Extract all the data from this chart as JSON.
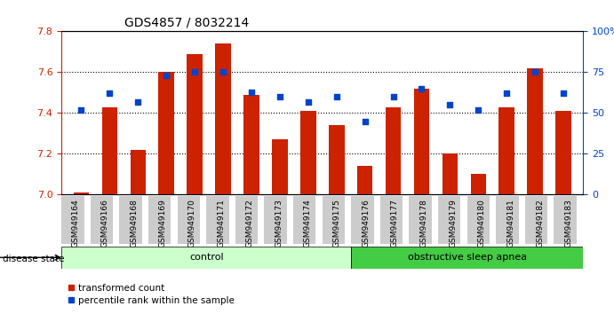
{
  "title": "GDS4857 / 8032214",
  "samples": [
    "GSM949164",
    "GSM949166",
    "GSM949168",
    "GSM949169",
    "GSM949170",
    "GSM949171",
    "GSM949172",
    "GSM949173",
    "GSM949174",
    "GSM949175",
    "GSM949176",
    "GSM949177",
    "GSM949178",
    "GSM949179",
    "GSM949180",
    "GSM949181",
    "GSM949182",
    "GSM949183"
  ],
  "red_values": [
    7.01,
    7.43,
    7.22,
    7.6,
    7.69,
    7.74,
    7.49,
    7.27,
    7.41,
    7.34,
    7.14,
    7.43,
    7.52,
    7.2,
    7.1,
    7.43,
    7.62,
    7.41
  ],
  "blue_values": [
    52,
    62,
    57,
    73,
    75,
    75,
    63,
    60,
    57,
    60,
    45,
    60,
    65,
    55,
    52,
    62,
    75,
    62
  ],
  "ylim_left": [
    7.0,
    7.8
  ],
  "ylim_right": [
    0,
    100
  ],
  "yticks_left": [
    7.0,
    7.2,
    7.4,
    7.6,
    7.8
  ],
  "yticks_right": [
    0,
    25,
    50,
    75,
    100
  ],
  "ytick_labels_right": [
    "0",
    "25",
    "50",
    "75",
    "100%"
  ],
  "control_count": 10,
  "osa_count": 8,
  "control_label": "control",
  "osa_label": "obstructive sleep apnea",
  "disease_state_label": "disease state",
  "legend_red": "transformed count",
  "legend_blue": "percentile rank within the sample",
  "bar_color": "#cc2200",
  "blue_color": "#0044cc",
  "control_bg": "#ccffcc",
  "osa_bg": "#44cc44",
  "tick_label_bg": "#cccccc",
  "grid_color": "#000000",
  "title_fontsize": 10,
  "axis_fontsize": 8,
  "label_fontsize": 8
}
